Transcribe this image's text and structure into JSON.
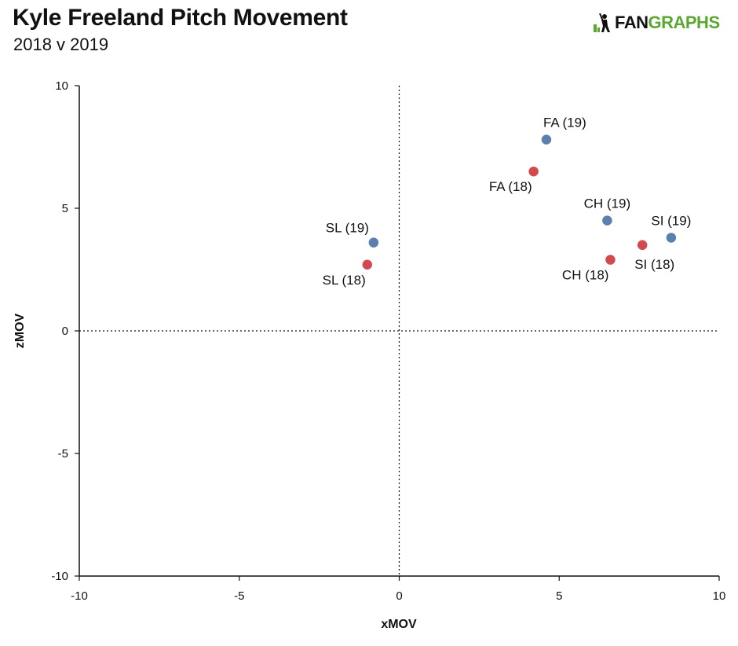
{
  "header": {
    "title": "Kyle Freeland Pitch Movement",
    "subtitle": "2018 v 2019",
    "logo_fan": "FAN",
    "logo_graphs": "GRAPHS"
  },
  "colors": {
    "y2019": "#5b80ad",
    "y2018": "#d24a4d",
    "brand_green": "#5aa832"
  },
  "chart_data": {
    "type": "scatter",
    "title": "Kyle Freeland Pitch Movement",
    "subtitle": "2018 v 2019",
    "xlabel": "xMOV",
    "ylabel": "zMOV",
    "xlim": [
      -10,
      10
    ],
    "ylim": [
      -10,
      10
    ],
    "xticks": [
      "-10",
      "-5",
      "0",
      "5",
      "10"
    ],
    "yticks": [
      "10",
      "5",
      "0",
      "-5",
      "-10"
    ],
    "grid": false,
    "reference_lines": "dotted lines at x=0 and y=0",
    "points": [
      {
        "label": "FA (19)",
        "x": 4.6,
        "y": 7.8,
        "year": "2019",
        "label_pos": "above-right"
      },
      {
        "label": "FA (18)",
        "x": 4.2,
        "y": 6.5,
        "year": "2018",
        "label_pos": "below-left"
      },
      {
        "label": "CH (19)",
        "x": 6.5,
        "y": 4.5,
        "year": "2019",
        "label_pos": "above"
      },
      {
        "label": "SI (19)",
        "x": 8.5,
        "y": 3.8,
        "year": "2019",
        "label_pos": "above"
      },
      {
        "label": "SL (19)",
        "x": -0.8,
        "y": 3.6,
        "year": "2019",
        "label_pos": "above-left"
      },
      {
        "label": "SI (18)",
        "x": 7.6,
        "y": 3.5,
        "year": "2018",
        "label_pos": "below-right"
      },
      {
        "label": "CH (18)",
        "x": 6.6,
        "y": 2.9,
        "year": "2018",
        "label_pos": "below-left"
      },
      {
        "label": "SL (18)",
        "x": -1.0,
        "y": 2.7,
        "year": "2018",
        "label_pos": "below-left"
      }
    ]
  }
}
